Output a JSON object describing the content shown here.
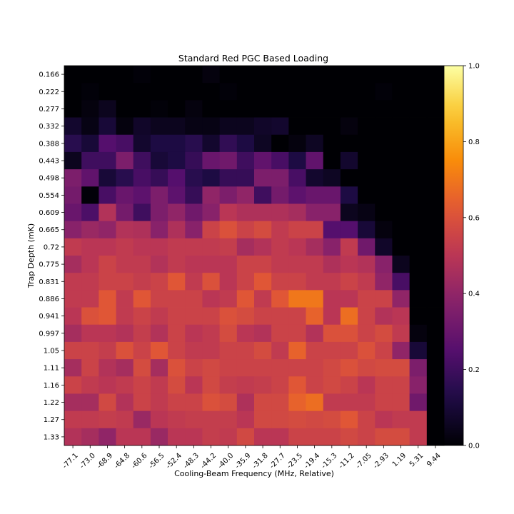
{
  "chart_data": {
    "type": "heatmap",
    "title": "Standard Red PGC Based Loading",
    "xlabel": "Cooling-Beam Frequency (MHz, Relative)",
    "ylabel": "Trap Depth (mK)",
    "x_categories": [
      "-77.1",
      "-73.0",
      "-68.9",
      "-64.8",
      "-60.6",
      "-56.5",
      "-52.4",
      "-48.3",
      "-44.2",
      "-40.0",
      "-35.9",
      "-31.8",
      "-27.7",
      "-23.5",
      "-19.4",
      "-15.3",
      "-11.2",
      "-7.05",
      "-2.93",
      "1.19",
      "5.31",
      "9.44"
    ],
    "y_categories": [
      "0.166",
      "0.222",
      "0.277",
      "0.332",
      "0.388",
      "0.443",
      "0.498",
      "0.554",
      "0.609",
      "0.665",
      "0.72",
      "0.775",
      "0.831",
      "0.886",
      "0.941",
      "0.997",
      "1.05",
      "1.11",
      "1.16",
      "1.22",
      "1.27",
      "1.33"
    ],
    "colormap": "inferno",
    "colorbar": {
      "min": 0.0,
      "max": 1.0,
      "ticks": [
        "0.0",
        "0.2",
        "0.4",
        "0.6",
        "0.8",
        "1.0"
      ]
    },
    "values": [
      [
        0.0,
        0.0,
        0.0,
        0.0,
        0.01,
        0.0,
        0.0,
        0.0,
        0.02,
        0.0,
        0.0,
        0.0,
        0.0,
        0.0,
        0.0,
        0.0,
        0.0,
        0.0,
        0.0,
        0.0,
        0.0,
        0.0
      ],
      [
        0.0,
        0.01,
        0.0,
        0.0,
        0.0,
        0.0,
        0.0,
        0.0,
        0.0,
        0.01,
        0.0,
        0.0,
        0.0,
        0.0,
        0.0,
        0.0,
        0.0,
        0.0,
        0.01,
        0.0,
        0.0,
        0.0
      ],
      [
        0.0,
        0.02,
        0.05,
        0.0,
        0.0,
        0.01,
        0.0,
        0.02,
        0.0,
        0.0,
        0.0,
        0.0,
        0.0,
        0.0,
        0.0,
        0.0,
        0.0,
        0.0,
        0.0,
        0.0,
        0.0,
        0.0
      ],
      [
        0.08,
        0.03,
        0.1,
        0.02,
        0.07,
        0.05,
        0.05,
        0.03,
        0.03,
        0.05,
        0.05,
        0.07,
        0.08,
        0.0,
        0.0,
        0.0,
        0.02,
        0.0,
        0.0,
        0.0,
        0.0,
        0.0
      ],
      [
        0.15,
        0.1,
        0.25,
        0.22,
        0.08,
        0.12,
        0.12,
        0.15,
        0.08,
        0.17,
        0.12,
        0.06,
        0.0,
        0.02,
        0.06,
        0.0,
        0.0,
        0.0,
        0.0,
        0.0,
        0.0,
        0.0
      ],
      [
        0.05,
        0.2,
        0.2,
        0.35,
        0.2,
        0.1,
        0.12,
        0.18,
        0.3,
        0.32,
        0.2,
        0.28,
        0.22,
        0.12,
        0.28,
        0.0,
        0.08,
        0.0,
        0.0,
        0.0,
        0.0,
        0.0
      ],
      [
        0.35,
        0.28,
        0.1,
        0.15,
        0.22,
        0.18,
        0.25,
        0.15,
        0.12,
        0.18,
        0.18,
        0.35,
        0.35,
        0.22,
        0.08,
        0.06,
        0.0,
        0.0,
        0.0,
        0.0,
        0.0,
        0.0
      ],
      [
        0.33,
        0.01,
        0.22,
        0.3,
        0.27,
        0.35,
        0.27,
        0.18,
        0.4,
        0.35,
        0.4,
        0.2,
        0.33,
        0.27,
        0.3,
        0.3,
        0.12,
        0.0,
        0.0,
        0.0,
        0.0,
        0.0
      ],
      [
        0.3,
        0.23,
        0.48,
        0.33,
        0.2,
        0.35,
        0.4,
        0.32,
        0.38,
        0.5,
        0.47,
        0.47,
        0.47,
        0.45,
        0.38,
        0.38,
        0.05,
        0.03,
        0.0,
        0.0,
        0.0,
        0.0
      ],
      [
        0.38,
        0.42,
        0.4,
        0.48,
        0.47,
        0.38,
        0.47,
        0.38,
        0.55,
        0.6,
        0.55,
        0.58,
        0.52,
        0.55,
        0.55,
        0.25,
        0.25,
        0.1,
        0.02,
        0.0,
        0.0,
        0.0
      ],
      [
        0.52,
        0.5,
        0.5,
        0.52,
        0.5,
        0.5,
        0.52,
        0.52,
        0.52,
        0.53,
        0.45,
        0.48,
        0.52,
        0.5,
        0.45,
        0.38,
        0.52,
        0.32,
        0.07,
        0.0,
        0.0,
        0.0
      ],
      [
        0.45,
        0.5,
        0.55,
        0.52,
        0.52,
        0.48,
        0.52,
        0.5,
        0.5,
        0.5,
        0.55,
        0.55,
        0.52,
        0.52,
        0.52,
        0.47,
        0.5,
        0.48,
        0.38,
        0.05,
        0.0,
        0.0
      ],
      [
        0.52,
        0.52,
        0.55,
        0.55,
        0.53,
        0.55,
        0.62,
        0.52,
        0.6,
        0.5,
        0.55,
        0.62,
        0.55,
        0.55,
        0.52,
        0.52,
        0.55,
        0.52,
        0.4,
        0.22,
        0.0,
        0.0
      ],
      [
        0.52,
        0.52,
        0.62,
        0.52,
        0.62,
        0.55,
        0.55,
        0.55,
        0.5,
        0.52,
        0.62,
        0.52,
        0.62,
        0.7,
        0.7,
        0.5,
        0.5,
        0.55,
        0.55,
        0.4,
        0.0,
        0.0
      ],
      [
        0.5,
        0.6,
        0.62,
        0.52,
        0.55,
        0.52,
        0.55,
        0.55,
        0.55,
        0.6,
        0.58,
        0.55,
        0.55,
        0.55,
        0.65,
        0.5,
        0.68,
        0.55,
        0.48,
        0.5,
        0.0,
        0.0
      ],
      [
        0.45,
        0.5,
        0.5,
        0.48,
        0.53,
        0.48,
        0.55,
        0.5,
        0.52,
        0.58,
        0.5,
        0.48,
        0.55,
        0.55,
        0.48,
        0.6,
        0.6,
        0.55,
        0.58,
        0.52,
        0.02,
        0.0
      ],
      [
        0.55,
        0.55,
        0.53,
        0.6,
        0.55,
        0.62,
        0.55,
        0.52,
        0.52,
        0.55,
        0.55,
        0.58,
        0.52,
        0.65,
        0.55,
        0.55,
        0.55,
        0.6,
        0.55,
        0.4,
        0.1,
        0.0
      ],
      [
        0.45,
        0.55,
        0.48,
        0.45,
        0.58,
        0.45,
        0.6,
        0.55,
        0.57,
        0.55,
        0.55,
        0.55,
        0.55,
        0.55,
        0.55,
        0.57,
        0.6,
        0.57,
        0.58,
        0.58,
        0.35,
        0.0
      ],
      [
        0.55,
        0.52,
        0.5,
        0.52,
        0.55,
        0.52,
        0.58,
        0.5,
        0.57,
        0.53,
        0.52,
        0.53,
        0.55,
        0.62,
        0.55,
        0.57,
        0.55,
        0.5,
        0.55,
        0.55,
        0.38,
        0.0
      ],
      [
        0.45,
        0.45,
        0.57,
        0.48,
        0.55,
        0.52,
        0.55,
        0.55,
        0.6,
        0.58,
        0.47,
        0.57,
        0.57,
        0.65,
        0.68,
        0.52,
        0.52,
        0.52,
        0.55,
        0.55,
        0.32,
        0.0
      ],
      [
        0.52,
        0.52,
        0.53,
        0.52,
        0.42,
        0.5,
        0.52,
        0.53,
        0.53,
        0.53,
        0.5,
        0.57,
        0.57,
        0.58,
        0.57,
        0.58,
        0.62,
        0.55,
        0.5,
        0.52,
        0.52,
        0.0
      ],
      [
        0.48,
        0.45,
        0.4,
        0.5,
        0.5,
        0.42,
        0.5,
        0.5,
        0.53,
        0.52,
        0.57,
        0.5,
        0.5,
        0.55,
        0.55,
        0.55,
        0.57,
        0.55,
        0.58,
        0.58,
        0.52,
        0.0
      ]
    ]
  }
}
